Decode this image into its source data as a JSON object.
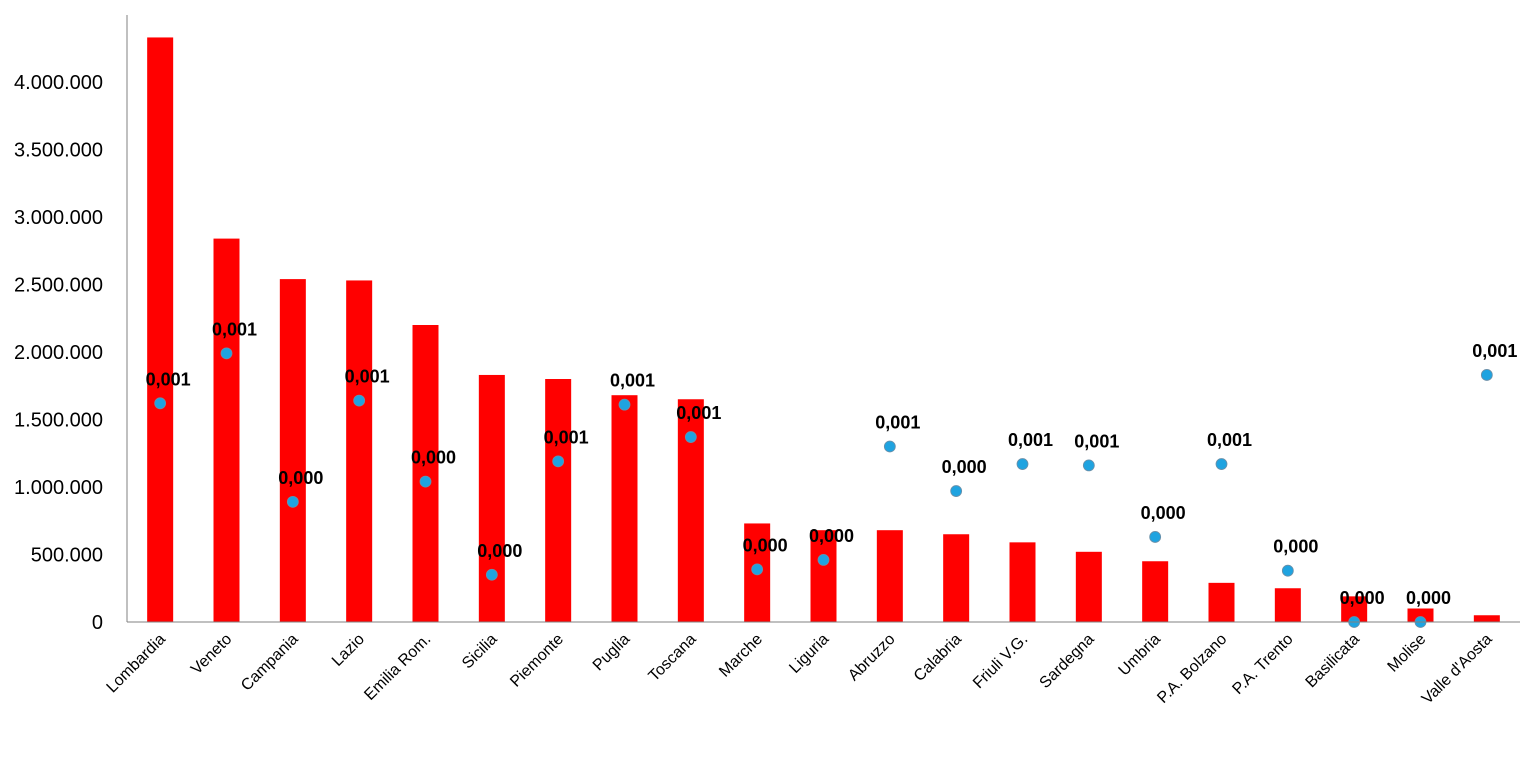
{
  "chart_data": {
    "type": "bar",
    "title": "",
    "xlabel": "",
    "ylabel": "",
    "ylim": [
      0,
      4500000
    ],
    "yticks": [
      "0",
      "500.000",
      "1.000.000",
      "1.500.000",
      "2.000.000",
      "2.500.000",
      "3.000.000",
      "3.500.000",
      "4.000.000"
    ],
    "ytick_values": [
      0,
      500000,
      1000000,
      1500000,
      2000000,
      2500000,
      3000000,
      3500000,
      4000000
    ],
    "grid": false,
    "categories": [
      "Lombardia",
      "Veneto",
      "Campania",
      "Lazio",
      "Emilia Rom.",
      "Sicilia",
      "Piemonte",
      "Puglia",
      "Toscana",
      "Marche",
      "Liguria",
      "Abruzzo",
      "Calabria",
      "Friuli V.G.",
      "Sardegna",
      "Umbria",
      "P.A. Bolzano",
      "P.A. Trento",
      "Basilicata",
      "Molise",
      "Valle d'Aosta"
    ],
    "series": [
      {
        "kind": "bar",
        "color": "#ff0000",
        "values": [
          4330000,
          2840000,
          2540000,
          2530000,
          2200000,
          1830000,
          1800000,
          1680000,
          1650000,
          730000,
          680000,
          680000,
          650000,
          590000,
          520000,
          450000,
          290000,
          250000,
          190000,
          100000,
          50000
        ]
      },
      {
        "kind": "scatter",
        "color": "#1fa3e0",
        "positions": [
          1620000,
          1990000,
          890000,
          1640000,
          1040000,
          350000,
          1190000,
          1610000,
          1370000,
          390000,
          460000,
          1300000,
          970000,
          1170000,
          1160000,
          630000,
          1170000,
          380000,
          0,
          0,
          1830000
        ],
        "labels": [
          "0,001",
          "0,001",
          "0,000",
          "0,001",
          "0,000",
          "0,000",
          "0,001",
          "0,001",
          "0,001",
          "0,000",
          "0,000",
          "0,001",
          "0,000",
          "0,001",
          "0,001",
          "0,000",
          "0,001",
          "0,000",
          "0,000",
          "0,000",
          "0,001"
        ]
      }
    ]
  }
}
